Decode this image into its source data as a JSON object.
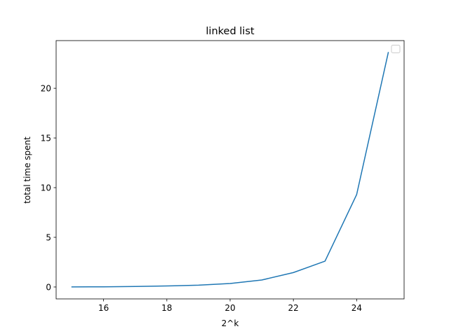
{
  "chart_data": {
    "type": "line",
    "title": "linked list",
    "xlabel": "2^k",
    "ylabel": "total time spent",
    "xlim": [
      14.5,
      25.5
    ],
    "ylim": [
      -1.2,
      24.8
    ],
    "xticks": [
      16,
      18,
      20,
      22,
      24
    ],
    "yticks": [
      0,
      5,
      10,
      15,
      20
    ],
    "grid": false,
    "legend": "top-right",
    "series": [
      {
        "color": "#1f77b4",
        "x": [
          15,
          16,
          17,
          18,
          19,
          20,
          21,
          22,
          23,
          24,
          25
        ],
        "y": [
          0.01,
          0.02,
          0.05,
          0.1,
          0.18,
          0.35,
          0.7,
          1.45,
          2.6,
          9.3,
          23.6
        ]
      }
    ]
  }
}
